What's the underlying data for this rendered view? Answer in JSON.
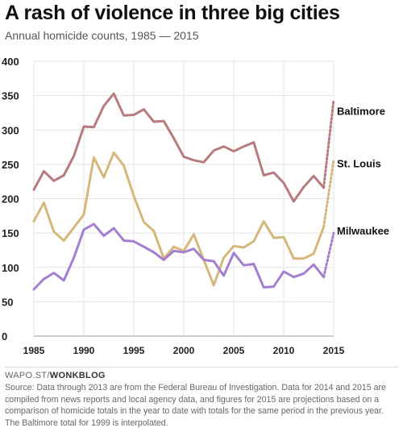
{
  "header": {
    "title": "A rash of violence in three big cities",
    "subtitle": "Annual homicide counts, 1985 — 2015"
  },
  "footer": {
    "brand_prefix": "WAPO.ST/",
    "brand_suffix": "WONKBLOG",
    "source": "Source: Data through 2013 are from the Federal Bureau of Investigation. Data for 2014 and 2015 are compiled from news reports and local agency data, and figures for 2015 are projections based on a comparison of homicide totals in the year to date with totals for the same period in the previous year. The Baltimore total for 1999 is interpolated."
  },
  "chart_data": {
    "type": "line",
    "title": "A rash of violence in three big cities",
    "subtitle": "Annual homicide counts, 1985 — 2015",
    "xlabel": "",
    "ylabel": "",
    "xlim": [
      1985,
      2015
    ],
    "ylim": [
      0,
      400
    ],
    "x_ticks": [
      1985,
      1990,
      1995,
      2000,
      2005,
      2010,
      2015
    ],
    "y_ticks": [
      0,
      50,
      100,
      150,
      200,
      250,
      300,
      350,
      400
    ],
    "grid": true,
    "x": [
      1985,
      1986,
      1987,
      1988,
      1989,
      1990,
      1991,
      1992,
      1993,
      1994,
      1995,
      1996,
      1997,
      1998,
      1999,
      2000,
      2001,
      2002,
      2003,
      2004,
      2005,
      2006,
      2007,
      2008,
      2009,
      2010,
      2011,
      2012,
      2013,
      2014
    ],
    "series": [
      {
        "name": "Baltimore",
        "color": "#b77b7f",
        "values": [
          213,
          240,
          226,
          234,
          262,
          305,
          304,
          335,
          353,
          321,
          322,
          330,
          312,
          313,
          288,
          261,
          256,
          253,
          270,
          276,
          269,
          276,
          282,
          234,
          238,
          223,
          196,
          217,
          233,
          216
        ],
        "projection": {
          "x": 2015,
          "value": 344
        }
      },
      {
        "name": "St. Louis",
        "color": "#d6b77b",
        "values": [
          167,
          194,
          152,
          139,
          158,
          177,
          260,
          231,
          267,
          248,
          204,
          166,
          153,
          113,
          130,
          124,
          148,
          111,
          74,
          114,
          131,
          129,
          138,
          167,
          143,
          144,
          113,
          113,
          120,
          159
        ],
        "projection": {
          "x": 2015,
          "value": 256
        }
      },
      {
        "name": "Milwaukee",
        "color": "#a37fd1",
        "values": [
          68,
          83,
          92,
          81,
          114,
          155,
          163,
          146,
          157,
          139,
          138,
          130,
          122,
          111,
          124,
          122,
          127,
          111,
          109,
          88,
          121,
          103,
          105,
          71,
          72,
          94,
          86,
          91,
          104,
          86
        ],
        "projection": {
          "x": 2015,
          "value": 150
        }
      }
    ]
  }
}
